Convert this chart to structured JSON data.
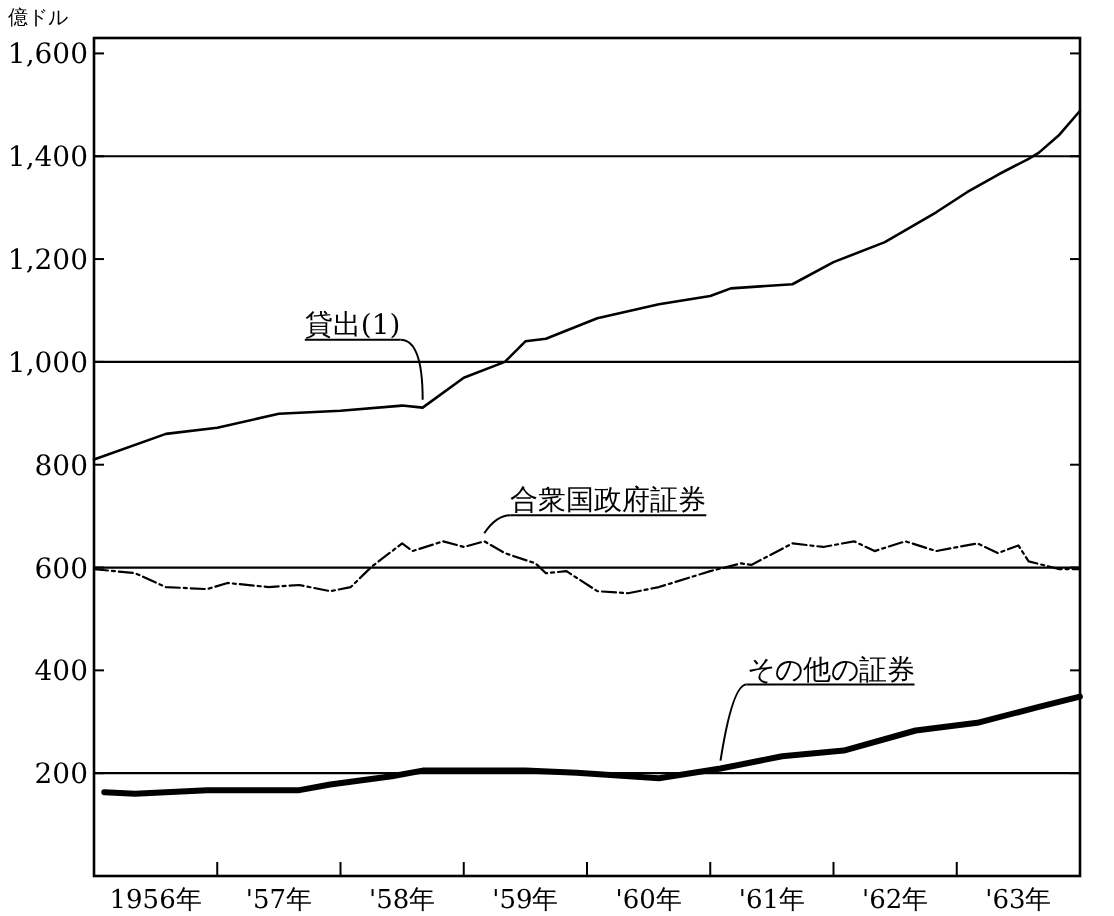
{
  "chart_data": {
    "type": "line",
    "ylabel": "億ドル",
    "xlim": [
      "1956",
      "1964"
    ],
    "ylim": [
      0,
      1630
    ],
    "xticks": [
      {
        "value": "1956-07",
        "label": "1956年"
      },
      {
        "value": "1957",
        "label": null
      },
      {
        "value": "1957-07",
        "label": "'57年"
      },
      {
        "value": "1958",
        "label": null
      },
      {
        "value": "1958-07",
        "label": "'58年"
      },
      {
        "value": "1959",
        "label": null
      },
      {
        "value": "1959-07",
        "label": "'59年"
      },
      {
        "value": "1960",
        "label": null
      },
      {
        "value": "1960-07",
        "label": "'60年"
      },
      {
        "value": "1961",
        "label": null
      },
      {
        "value": "1961-07",
        "label": "'61年"
      },
      {
        "value": "1962",
        "label": null
      },
      {
        "value": "1962-07",
        "label": "'62年"
      },
      {
        "value": "1963",
        "label": null
      },
      {
        "value": "1963-07",
        "label": "'63年"
      },
      {
        "value": "1964",
        "label": null
      }
    ],
    "yticks": [
      {
        "value": 200,
        "label": "200"
      },
      {
        "value": 400,
        "label": "400"
      },
      {
        "value": 600,
        "label": "600"
      },
      {
        "value": 800,
        "label": "800"
      },
      {
        "value": 1000,
        "label": "1,000"
      },
      {
        "value": 1200,
        "label": "1,200"
      },
      {
        "value": 1400,
        "label": "1,400"
      },
      {
        "value": 1600,
        "label": "1,600"
      }
    ],
    "ref_lines": [
      {
        "axis": "y",
        "value": 200
      },
      {
        "axis": "y",
        "value": 600
      },
      {
        "axis": "y",
        "value": 1000
      },
      {
        "axis": "y",
        "value": 1400
      }
    ],
    "grid": false,
    "series": [
      {
        "color": "#000000",
        "line_style": "solid",
        "x": [
          "1956-01",
          "1956-08",
          "1957-01",
          "1957-07",
          "1958-01",
          "1958-07",
          "1958-09",
          "1959-01",
          "1959-05",
          "1959-07",
          "1959-09",
          "1960-02",
          "1960-08",
          "1961-01",
          "1961-03",
          "1961-09",
          "1962-01",
          "1962-06",
          "1962-11",
          "1963-02",
          "1963-05",
          "1963-08",
          "1963-09",
          "1963-11",
          "1963-12-31"
        ],
        "values": [
          810,
          860,
          872,
          899,
          905,
          915,
          911,
          969,
          1000,
          1040,
          1045,
          1085,
          1112,
          1128,
          1143,
          1151,
          1194,
          1233,
          1291,
          1330,
          1364,
          1395,
          1407,
          1442,
          1488
        ]
      },
      {
        "color": "#000000",
        "line_style": "dashed",
        "x": [
          "1956-01",
          "1956-05",
          "1956-08",
          "1956-12",
          "1957-02",
          "1957-06",
          "1957-09",
          "1957-12",
          "1958-02",
          "1958-04",
          "1958-07",
          "1958-08",
          "1958-11",
          "1959-01",
          "1959-03",
          "1959-05",
          "1959-08",
          "1959-09",
          "1959-11",
          "1960-02",
          "1960-05",
          "1960-08",
          "1961-01",
          "1961-04",
          "1961-05",
          "1961-09",
          "1961-12",
          "1962-03",
          "1962-05",
          "1962-08",
          "1962-11",
          "1963-03",
          "1963-05",
          "1963-07",
          "1963-08",
          "1963-11",
          "1963-12-31"
        ],
        "values": [
          597,
          589,
          562,
          558,
          570,
          562,
          566,
          554,
          562,
          601,
          647,
          632,
          651,
          640,
          651,
          628,
          608,
          589,
          593,
          554,
          550,
          562,
          593,
          608,
          605,
          647,
          640,
          651,
          632,
          651,
          632,
          647,
          628,
          643,
          612,
          597,
          597
        ]
      },
      {
        "color": "#000000",
        "line_style": "solid",
        "x": [
          "1956-02",
          "1956-05",
          "1956-12",
          "1957-09",
          "1957-12",
          "1958-06",
          "1958-09",
          "1959-07",
          "1959-12",
          "1960-08",
          "1961-02",
          "1961-08",
          "1962-02",
          "1962-09",
          "1963-03",
          "1963-09",
          "1963-12-31"
        ],
        "values": [
          163,
          160,
          167,
          167,
          178,
          194,
          205,
          205,
          201,
          190,
          209,
          233,
          244,
          283,
          298,
          329,
          349
        ]
      }
    ],
    "annotations": [
      {
        "text": "貸出(1)",
        "x": "1958-09",
        "y": 911
      },
      {
        "text": "合衆国政府証券",
        "x": "1959-03",
        "y": 651
      },
      {
        "text": "その他の証券",
        "x": "1961-02",
        "y": 209
      }
    ]
  }
}
